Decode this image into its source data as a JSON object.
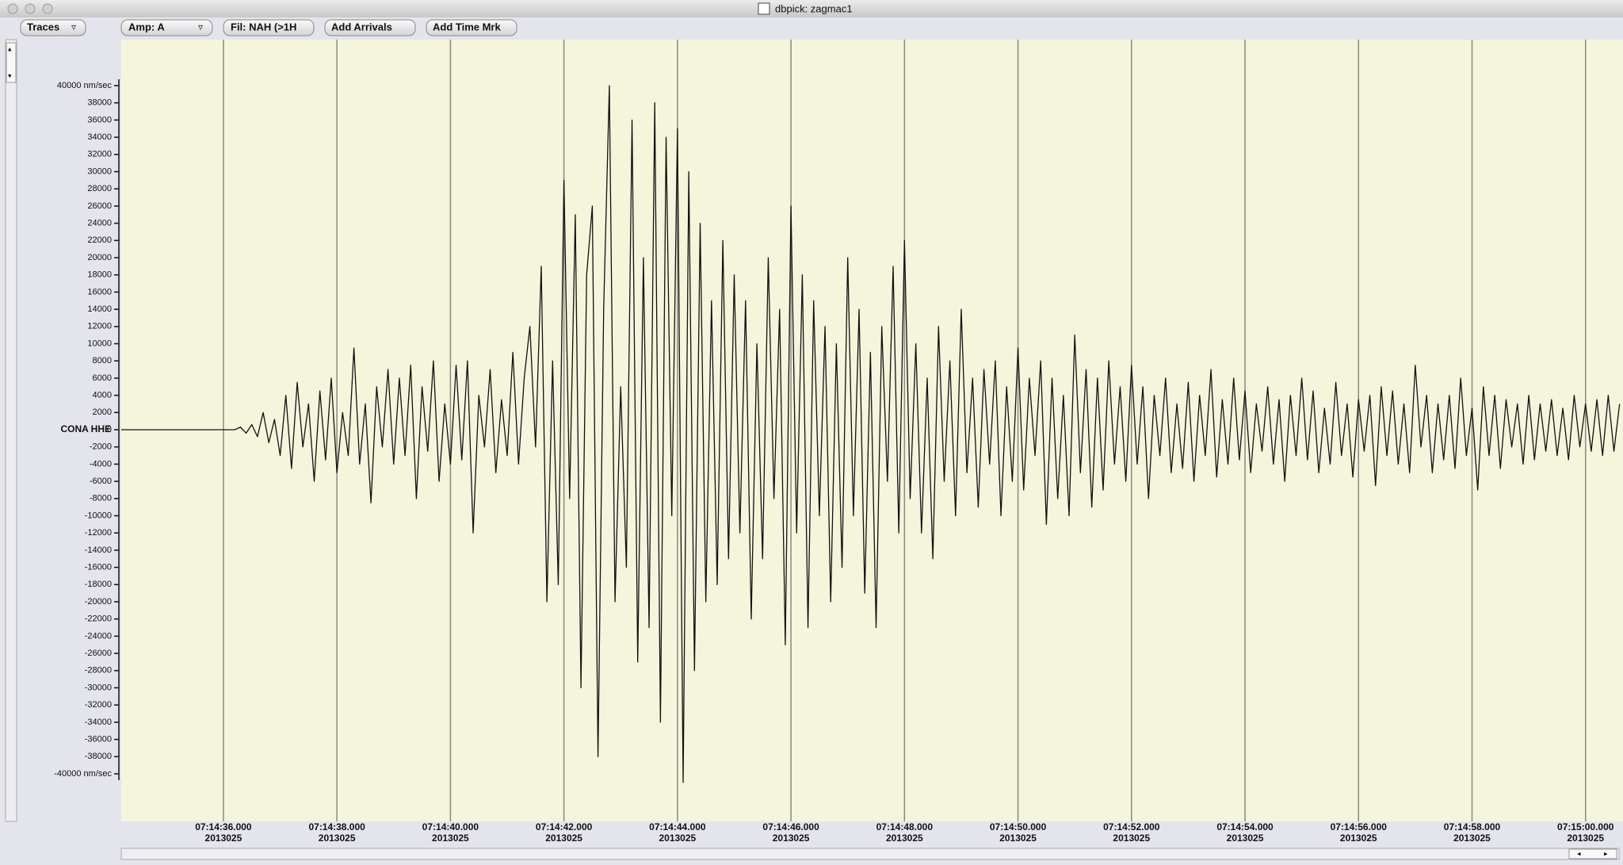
{
  "window": {
    "title": "dbpick: zagmac1"
  },
  "toolbar": {
    "buttons": [
      "Traces",
      "Amp: A",
      "Fil: NAH (>1H",
      "Add Arrivals",
      "Add Time Mrk"
    ]
  },
  "chart_data": {
    "type": "line",
    "trace_label": "CONA HHE",
    "color": "#111111",
    "background": "#f5f5dc",
    "grid": true,
    "xlim": [
      34.2,
      60.66
    ],
    "ylim": [
      -40000,
      40000
    ],
    "xticks": [
      {
        "value": 36,
        "label": "07:14:36.000"
      },
      {
        "value": 38,
        "label": "07:14:38.000"
      },
      {
        "value": 40,
        "label": "07:14:40.000"
      },
      {
        "value": 42,
        "label": "07:14:42.000"
      },
      {
        "value": 44,
        "label": "07:14:44.000"
      },
      {
        "value": 46,
        "label": "07:14:46.000"
      },
      {
        "value": 48,
        "label": "07:14:48.000"
      },
      {
        "value": 50,
        "label": "07:14:50.000"
      },
      {
        "value": 52,
        "label": "07:14:52.000"
      },
      {
        "value": 54,
        "label": "07:14:54.000"
      },
      {
        "value": 56,
        "label": "07:14:56.000"
      },
      {
        "value": 58,
        "label": "07:14:58.000"
      },
      {
        "value": 60,
        "label": "07:15:00.000"
      }
    ],
    "xtick_dates": [
      "2013025",
      "2013025",
      "2013025",
      "2013025",
      "2013025",
      "2013025",
      "2013025",
      "2013025",
      "2013025",
      "2013025",
      "2013025",
      "2013025",
      "2013025"
    ],
    "yticks": [
      {
        "value": 40000,
        "label": "40000 nm/sec"
      },
      38000,
      36000,
      34000,
      32000,
      30000,
      28000,
      26000,
      24000,
      22000,
      20000,
      18000,
      16000,
      14000,
      12000,
      10000,
      8000,
      6000,
      4000,
      2000,
      0,
      -2000,
      -4000,
      -6000,
      -8000,
      -10000,
      -12000,
      -14000,
      -16000,
      -18000,
      -20000,
      -22000,
      -24000,
      -26000,
      -28000,
      -30000,
      -32000,
      -34000,
      -36000,
      -38000,
      {
        "value": -40000,
        "label": "-40000 nm/sec"
      }
    ],
    "x": [
      34.2,
      36.2,
      36.3,
      36.4,
      36.5,
      36.6,
      36.7,
      36.8,
      36.9,
      37.0,
      37.1,
      37.2,
      37.3,
      37.4,
      37.5,
      37.6,
      37.7,
      37.8,
      37.9,
      38.0,
      38.1,
      38.2,
      38.3,
      38.4,
      38.5,
      38.6,
      38.7,
      38.8,
      38.9,
      39.0,
      39.1,
      39.2,
      39.3,
      39.4,
      39.5,
      39.6,
      39.7,
      39.8,
      39.9,
      40.0,
      40.1,
      40.2,
      40.3,
      40.4,
      40.5,
      40.6,
      40.7,
      40.8,
      40.9,
      41.0,
      41.1,
      41.2,
      41.3,
      41.4,
      41.5,
      41.6,
      41.7,
      41.8,
      41.9,
      42.0,
      42.1,
      42.2,
      42.3,
      42.4,
      42.5,
      42.6,
      42.7,
      42.8,
      42.9,
      43.0,
      43.1,
      43.2,
      43.3,
      43.4,
      43.5,
      43.6,
      43.7,
      43.8,
      43.9,
      44.0,
      44.1,
      44.2,
      44.3,
      44.4,
      44.5,
      44.6,
      44.7,
      44.8,
      44.9,
      45.0,
      45.1,
      45.2,
      45.3,
      45.4,
      45.5,
      45.6,
      45.7,
      45.8,
      45.9,
      46.0,
      46.1,
      46.2,
      46.3,
      46.4,
      46.5,
      46.6,
      46.7,
      46.8,
      46.9,
      47.0,
      47.1,
      47.2,
      47.3,
      47.4,
      47.5,
      47.6,
      47.7,
      47.8,
      47.9,
      48.0,
      48.1,
      48.2,
      48.3,
      48.4,
      48.5,
      48.6,
      48.7,
      48.8,
      48.9,
      49.0,
      49.1,
      49.2,
      49.3,
      49.4,
      49.5,
      49.6,
      49.7,
      49.8,
      49.9,
      50.0,
      50.1,
      50.2,
      50.3,
      50.4,
      50.5,
      50.6,
      50.7,
      50.8,
      50.9,
      51.0,
      51.1,
      51.2,
      51.3,
      51.4,
      51.5,
      51.6,
      51.7,
      51.8,
      51.9,
      52.0,
      52.1,
      52.2,
      52.3,
      52.4,
      52.5,
      52.6,
      52.7,
      52.8,
      52.9,
      53.0,
      53.1,
      53.2,
      53.3,
      53.4,
      53.5,
      53.6,
      53.7,
      53.8,
      53.9,
      54.0,
      54.1,
      54.2,
      54.3,
      54.4,
      54.5,
      54.6,
      54.7,
      54.8,
      54.9,
      55.0,
      55.1,
      55.2,
      55.3,
      55.4,
      55.5,
      55.6,
      55.7,
      55.8,
      55.9,
      56.0,
      56.1,
      56.2,
      56.3,
      56.4,
      56.5,
      56.6,
      56.7,
      56.8,
      56.9,
      57.0,
      57.1,
      57.2,
      57.3,
      57.4,
      57.5,
      57.6,
      57.7,
      57.8,
      57.9,
      58.0,
      58.1,
      58.2,
      58.3,
      58.4,
      58.5,
      58.6,
      58.7,
      58.8,
      58.9,
      59.0,
      59.1,
      59.2,
      59.3,
      59.4,
      59.5,
      59.6,
      59.7,
      59.8,
      59.9,
      60.0,
      60.1,
      60.2,
      60.3,
      60.4,
      60.5,
      60.6
    ],
    "values": [
      0,
      0,
      300,
      -400,
      600,
      -800,
      2000,
      -1500,
      1200,
      -3000,
      4000,
      -4500,
      5500,
      -2000,
      3000,
      -6000,
      4500,
      -3500,
      6000,
      -5000,
      2000,
      -3000,
      9500,
      -4000,
      3000,
      -8500,
      5000,
      -2000,
      7000,
      -4000,
      6000,
      -3000,
      7500,
      -8000,
      5000,
      -2500,
      8000,
      -6000,
      3000,
      -4000,
      7500,
      -3500,
      8000,
      -12000,
      4000,
      -2000,
      7000,
      -5000,
      3500,
      -3000,
      9000,
      -4000,
      6000,
      12000,
      -2000,
      19000,
      -20000,
      8000,
      -18000,
      29000,
      -8000,
      25000,
      -30000,
      18000,
      26000,
      -38000,
      14000,
      40000,
      -20000,
      5000,
      -16000,
      36000,
      -27000,
      20000,
      -23000,
      38000,
      -34000,
      34000,
      -10000,
      35000,
      -41000,
      30000,
      -28000,
      24000,
      -20000,
      15000,
      -18000,
      22000,
      -15000,
      18000,
      -12000,
      15000,
      -22000,
      10000,
      -15000,
      20000,
      -8000,
      14000,
      -25000,
      26000,
      -12000,
      18000,
      -23000,
      15000,
      -10000,
      12000,
      -20000,
      10000,
      -16000,
      20000,
      -10000,
      14000,
      -19000,
      9000,
      -23000,
      12000,
      -6000,
      19000,
      -12000,
      22000,
      -8000,
      10000,
      -12000,
      6000,
      -15000,
      12000,
      -6000,
      8000,
      -10000,
      14000,
      -5000,
      6000,
      -9000,
      7000,
      -4000,
      8000,
      -10000,
      5000,
      -6000,
      9500,
      -7000,
      6000,
      -3000,
      8000,
      -11000,
      6000,
      -8000,
      4000,
      -10000,
      11000,
      -5000,
      7000,
      -9000,
      6000,
      -7000,
      8000,
      -4000,
      5000,
      -6000,
      7500,
      -4000,
      5000,
      -8000,
      4000,
      -3000,
      6000,
      -5000,
      3000,
      -4500,
      5500,
      -6000,
      4000,
      -3000,
      7000,
      -5500,
      3500,
      -4000,
      6000,
      -3500,
      4500,
      -5000,
      3000,
      -2500,
      5000,
      -4000,
      3500,
      -6000,
      4000,
      -3000,
      6000,
      -3500,
      4500,
      -5000,
      2500,
      -4000,
      5500,
      -3000,
      3000,
      -5500,
      3500,
      -2500,
      4000,
      -6500,
      5000,
      -3000,
      4500,
      -4000,
      3000,
      -5000,
      7500,
      -2000,
      4000,
      -5000,
      3000,
      -3500,
      4000,
      -4500,
      6000,
      -3000,
      2500,
      -7000,
      5000,
      -3000,
      4000,
      -4500,
      3500,
      -2000,
      3000,
      -4000,
      4000,
      -3500,
      3000,
      -2500,
      3500,
      -3000,
      2500,
      -3500,
      4000,
      -2000,
      3000,
      -2500,
      3500,
      -3000,
      4000,
      -2500,
      3000
    ]
  }
}
